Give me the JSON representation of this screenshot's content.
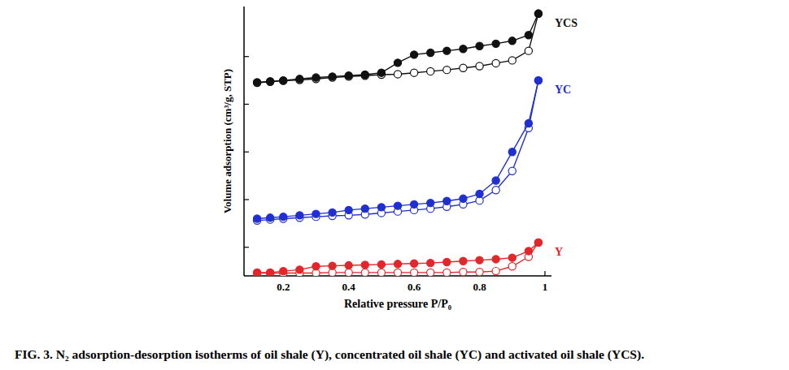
{
  "chart_data": {
    "type": "line",
    "title": "FIG. 3. N₂ adsorption-desorption isotherms of oil shale (Y), concentrated oil shale (YC) and activated oil shale (YCS).",
    "x_label": "Relative pressure P/P₀",
    "y_label": "Volume adsorption (cm³/g, STP)",
    "x": [
      0.12,
      0.16,
      0.2,
      0.25,
      0.3,
      0.35,
      0.4,
      0.45,
      0.5,
      0.55,
      0.6,
      0.65,
      0.7,
      0.75,
      0.8,
      0.85,
      0.9,
      0.95,
      0.98
    ],
    "xlim": [
      0.08,
      1.02
    ],
    "xticks": [
      0.2,
      0.4,
      0.6,
      0.8,
      1
    ],
    "ylim": [
      0.4,
      6.05
    ],
    "yticks": [
      1,
      2,
      3,
      4,
      5
    ],
    "tick_labels": "x",
    "grid": false,
    "marker": "circle",
    "series": [
      {
        "name": "Y",
        "color": "#e3262b",
        "values": [
          0.47,
          0.47,
          0.5,
          0.53,
          0.6,
          0.61,
          0.62,
          0.63,
          0.64,
          0.65,
          0.66,
          0.67,
          0.69,
          0.71,
          0.73,
          0.75,
          0.78,
          0.92,
          1.1
        ],
        "desorption": [
          0.46,
          0.46,
          0.46,
          0.46,
          0.46,
          0.47,
          0.47,
          0.47,
          0.47,
          0.47,
          0.47,
          0.47,
          0.47,
          0.48,
          0.48,
          0.5,
          0.6,
          0.8,
          1.1
        ]
      },
      {
        "name": "YC",
        "color": "#1f2fd0",
        "values": [
          1.6,
          1.62,
          1.64,
          1.67,
          1.7,
          1.73,
          1.78,
          1.81,
          1.84,
          1.87,
          1.9,
          1.93,
          1.97,
          2.02,
          2.12,
          2.4,
          3.0,
          3.6,
          4.5
        ],
        "desorption": [
          1.56,
          1.58,
          1.6,
          1.62,
          1.64,
          1.66,
          1.67,
          1.69,
          1.72,
          1.75,
          1.78,
          1.81,
          1.85,
          1.9,
          1.98,
          2.2,
          2.6,
          3.5,
          4.5
        ]
      },
      {
        "name": "YCS",
        "color": "#111111",
        "values": [
          4.46,
          4.48,
          4.5,
          4.53,
          4.56,
          4.58,
          4.6,
          4.62,
          4.66,
          4.87,
          5.04,
          5.08,
          5.12,
          5.16,
          5.22,
          5.27,
          5.33,
          5.45,
          5.9
        ],
        "desorption": [
          4.45,
          4.47,
          4.49,
          4.51,
          4.53,
          4.56,
          4.58,
          4.6,
          4.62,
          4.63,
          4.66,
          4.69,
          4.72,
          4.76,
          4.8,
          4.86,
          4.92,
          5.12,
          5.9
        ]
      }
    ]
  }
}
